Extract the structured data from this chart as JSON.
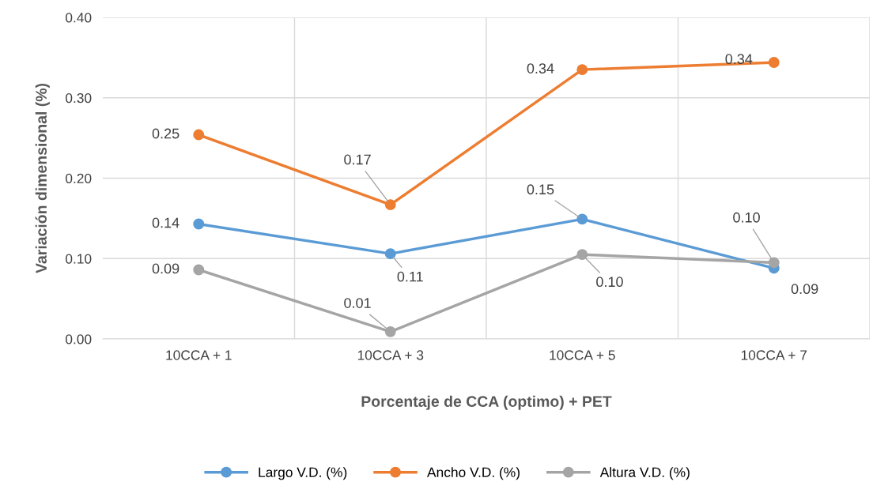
{
  "chart_data": {
    "type": "line",
    "xlabel": "Porcentaje de CCA (optimo) + PET",
    "ylabel": "Variación dimensional (%)",
    "categories": [
      "10CCA + 1",
      "10CCA + 3",
      "10CCA + 5",
      "10CCA + 7"
    ],
    "series": [
      {
        "name": "Largo V.D. (%)",
        "color": "#5b9bd5",
        "values": [
          0.143,
          0.106,
          0.149,
          0.088
        ],
        "value_labels": [
          "0.14",
          "0.11",
          "0.15",
          "0.09"
        ]
      },
      {
        "name": "Ancho V.D. (%)",
        "color": "#ed7d31",
        "values": [
          0.254,
          0.167,
          0.335,
          0.344
        ],
        "value_labels": [
          "0.25",
          "0.17",
          "0.34",
          "0.34"
        ]
      },
      {
        "name": "Altura V.D. (%)",
        "color": "#a5a5a5",
        "values": [
          0.086,
          0.009,
          0.105,
          0.095
        ],
        "value_labels": [
          "0.09",
          "0.01",
          "0.10",
          "0.10"
        ]
      }
    ],
    "ylim": [
      0,
      0.4
    ],
    "yticks": [
      {
        "value": 0,
        "label": "0.00"
      },
      {
        "value": 0.1,
        "label": "0.10"
      },
      {
        "value": 0.2,
        "label": "0.20"
      },
      {
        "value": 0.3,
        "label": "0.30"
      },
      {
        "value": 0.4,
        "label": "0.40"
      }
    ],
    "grid": true,
    "legend": "bottom",
    "marker": "circle",
    "line_style": "solid"
  }
}
